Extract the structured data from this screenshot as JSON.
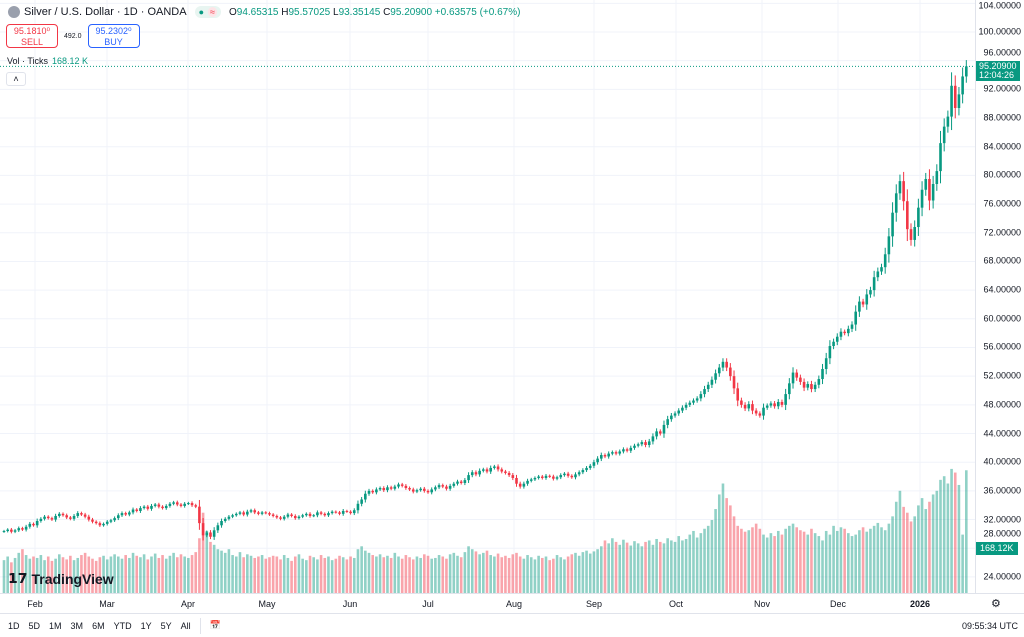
{
  "header": {
    "symbol": "Silver / U.S. Dollar · 1D · OANDA",
    "open_label": "O",
    "open": "94.65315",
    "high_label": "H",
    "high": "95.57025",
    "low_label": "L",
    "low": "93.35145",
    "close_label": "C",
    "close": "95.20900",
    "change": "+0.63575 (+0.67%)",
    "status_dot": "●",
    "status_wave": "≈"
  },
  "trade": {
    "sell_price": "95.1810⁰",
    "sell_label": "SELL",
    "spread": "492.0",
    "buy_price": "95.2302⁰",
    "buy_label": "BUY"
  },
  "volume_legend": {
    "label": "Vol · Ticks",
    "value": "168.12 K"
  },
  "collapse_glyph": "˄",
  "price_tag": {
    "price": "95.20900",
    "countdown": "12:04:26"
  },
  "volume_tag": "168.12K",
  "logo": "TradingView",
  "colors": {
    "up": "#089981",
    "down": "#f23645",
    "accent": "#2962ff"
  },
  "ranges": [
    "1D",
    "5D",
    "1M",
    "3M",
    "6M",
    "YTD",
    "1Y",
    "5Y",
    "All"
  ],
  "clock": "09:55:34 UTC",
  "chart_data": {
    "type": "candlestick",
    "price_ticks": [
      "104.00000",
      "100.00000",
      "96.00000",
      "92.00000",
      "88.00000",
      "84.00000",
      "80.00000",
      "76.00000",
      "72.00000",
      "68.00000",
      "64.00000",
      "60.00000",
      "56.00000",
      "52.00000",
      "48.00000",
      "44.00000",
      "40.00000",
      "36.00000",
      "32.00000",
      "28.00000",
      "24.00000"
    ],
    "x_ticks": [
      "Feb",
      "Mar",
      "Apr",
      "May",
      "Jun",
      "Jul",
      "Aug",
      "Sep",
      "Oct",
      "Nov",
      "Dec",
      "2026"
    ],
    "ylim": [
      24,
      104
    ],
    "closes": [
      30.4,
      30.6,
      30.3,
      30.5,
      30.8,
      30.6,
      31.0,
      31.4,
      31.2,
      31.8,
      32.1,
      32.4,
      32.2,
      32.0,
      32.5,
      32.8,
      32.6,
      32.3,
      32.1,
      32.5,
      32.9,
      32.7,
      32.4,
      32.0,
      31.7,
      31.5,
      31.2,
      31.4,
      31.7,
      31.9,
      32.2,
      32.6,
      32.9,
      32.7,
      33.0,
      33.4,
      33.2,
      33.6,
      33.8,
      33.5,
      33.9,
      34.1,
      33.8,
      33.6,
      33.9,
      34.2,
      34.4,
      34.1,
      33.9,
      34.2,
      34.3,
      34.0,
      33.8,
      31.5,
      29.8,
      30.2,
      29.6,
      30.5,
      31.2,
      31.8,
      32.1,
      32.4,
      32.6,
      32.8,
      33.0,
      32.7,
      33.1,
      33.3,
      33.0,
      32.8,
      33.0,
      32.9,
      32.7,
      32.5,
      32.3,
      32.1,
      32.4,
      32.7,
      32.5,
      32.2,
      32.4,
      32.6,
      32.8,
      32.5,
      32.6,
      33.0,
      32.8,
      32.6,
      32.9,
      33.1,
      33.0,
      32.8,
      33.2,
      33.1,
      32.9,
      33.3,
      34.2,
      34.8,
      35.6,
      36.0,
      35.8,
      36.2,
      36.4,
      36.1,
      36.5,
      36.3,
      36.6,
      36.9,
      36.7,
      36.4,
      36.2,
      35.9,
      36.1,
      36.3,
      36.0,
      35.8,
      36.2,
      36.5,
      36.8,
      36.6,
      36.3,
      36.7,
      37.0,
      37.3,
      37.1,
      37.5,
      38.2,
      38.6,
      38.3,
      38.8,
      39.0,
      38.7,
      39.2,
      39.4,
      39.0,
      38.7,
      38.5,
      38.2,
      37.8,
      37.0,
      36.6,
      37.0,
      37.4,
      37.6,
      37.8,
      38.0,
      37.8,
      38.1,
      38.0,
      37.7,
      37.9,
      38.2,
      38.4,
      38.1,
      37.9,
      38.3,
      38.6,
      38.9,
      39.2,
      39.5,
      40.0,
      40.5,
      41.0,
      40.8,
      41.2,
      41.4,
      41.2,
      41.5,
      41.8,
      41.6,
      42.0,
      42.3,
      42.5,
      42.8,
      42.4,
      42.9,
      43.6,
      44.3,
      44.0,
      45.2,
      46.0,
      46.5,
      46.8,
      47.2,
      47.6,
      48.0,
      48.3,
      48.6,
      48.9,
      49.5,
      50.2,
      50.8,
      51.5,
      52.4,
      53.2,
      54.0,
      53.2,
      52.0,
      50.3,
      48.6,
      48.0,
      47.5,
      48.1,
      47.2,
      46.8,
      46.5,
      47.6,
      47.9,
      48.2,
      47.8,
      48.4,
      48.0,
      49.5,
      51.0,
      52.5,
      51.8,
      51.2,
      50.4,
      50.9,
      50.2,
      50.8,
      51.6,
      53.0,
      54.5,
      56.2,
      56.8,
      57.5,
      58.2,
      58.0,
      58.6,
      59.2,
      61.0,
      62.4,
      62.0,
      63.4,
      64.0,
      65.8,
      66.6,
      67.2,
      69.0,
      71.5,
      74.8,
      77.5,
      79.2,
      76.4,
      72.5,
      71.0,
      72.8,
      75.5,
      78.0,
      79.5,
      76.5,
      78.8,
      80.6,
      84.5,
      86.8,
      88.2,
      92.5,
      89.4,
      91.3,
      93.8,
      95.209
    ],
    "volumes_k": [
      45,
      50,
      42,
      48,
      55,
      60,
      52,
      47,
      50,
      48,
      52,
      45,
      50,
      44,
      47,
      53,
      49,
      46,
      51,
      45,
      48,
      52,
      55,
      50,
      47,
      44,
      49,
      51,
      46,
      50,
      53,
      50,
      47,
      52,
      48,
      55,
      51,
      49,
      53,
      46,
      50,
      54,
      48,
      52,
      47,
      51,
      55,
      49,
      53,
      50,
      48,
      52,
      56,
      75,
      110,
      85,
      70,
      66,
      60,
      58,
      55,
      60,
      52,
      50,
      56,
      49,
      53,
      51,
      48,
      50,
      52,
      47,
      49,
      51,
      50,
      46,
      52,
      48,
      44,
      50,
      53,
      47,
      45,
      51,
      49,
      46,
      52,
      48,
      50,
      45,
      47,
      51,
      49,
      46,
      50,
      48,
      60,
      64,
      58,
      55,
      52,
      50,
      53,
      49,
      51,
      48,
      55,
      50,
      47,
      52,
      49,
      46,
      50,
      48,
      53,
      51,
      47,
      48,
      52,
      50,
      47,
      53,
      55,
      51,
      49,
      56,
      64,
      60,
      57,
      53,
      55,
      58,
      52,
      50,
      54,
      49,
      51,
      48,
      53,
      55,
      50,
      47,
      52,
      49,
      46,
      51,
      48,
      50,
      45,
      47,
      52,
      49,
      46,
      50,
      53,
      55,
      51,
      56,
      58,
      54,
      57,
      60,
      64,
      72,
      68,
      75,
      70,
      66,
      73,
      69,
      65,
      71,
      68,
      64,
      70,
      72,
      66,
      74,
      70,
      68,
      75,
      72,
      70,
      78,
      72,
      74,
      80,
      85,
      76,
      82,
      88,
      92,
      100,
      115,
      135,
      150,
      130,
      120,
      105,
      92,
      88,
      84,
      86,
      90,
      95,
      88,
      80,
      76,
      82,
      78,
      85,
      80,
      88,
      92,
      95,
      90,
      86,
      84,
      80,
      88,
      82,
      78,
      72,
      85,
      80,
      92,
      85,
      90,
      88,
      82,
      78,
      80,
      86,
      90,
      84,
      88,
      92,
      96,
      90,
      86,
      95,
      105,
      125,
      140,
      118,
      110,
      98,
      105,
      120,
      130,
      115,
      125,
      135,
      140,
      155,
      160,
      150,
      170,
      165,
      148,
      80,
      168.12
    ]
  }
}
